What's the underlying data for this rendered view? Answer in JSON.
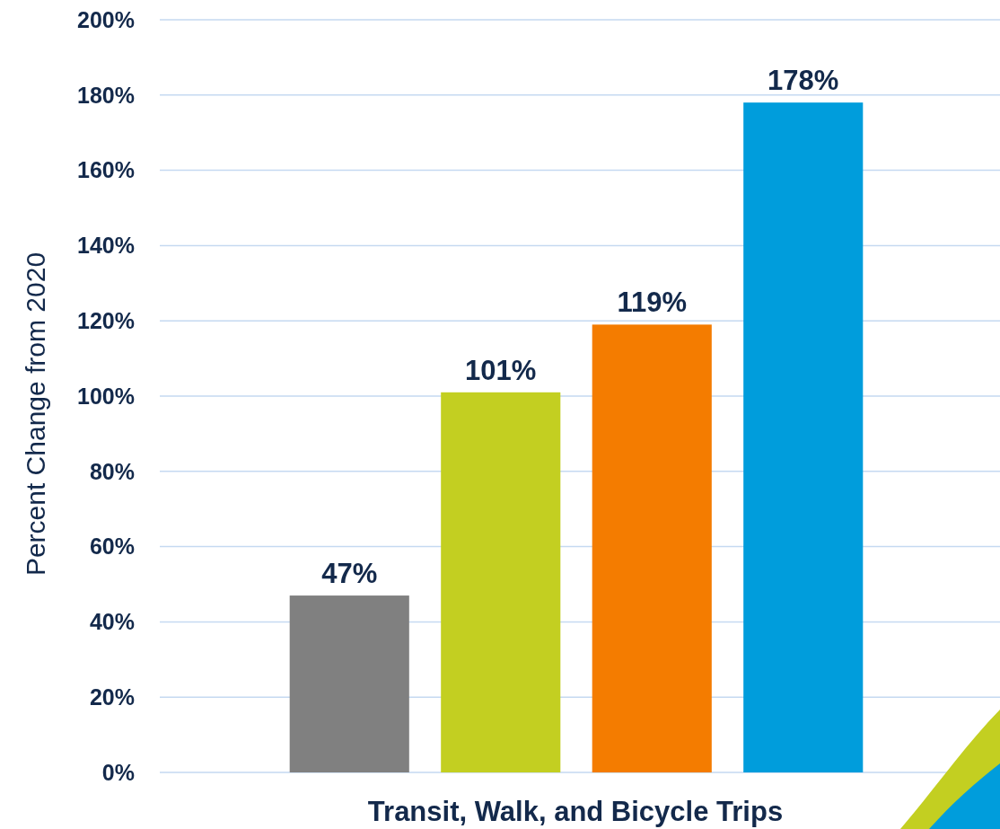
{
  "chart_data": {
    "type": "bar",
    "xlabel": "Transit, Walk, and Bicycle Trips",
    "ylabel": "Percent Change from 2020",
    "categories": [
      null,
      null,
      null,
      null
    ],
    "values": [
      47,
      101,
      119,
      178
    ],
    "colors": [
      "#808080",
      "#c3cf21",
      "#f47c00",
      "#009ddc"
    ],
    "value_labels": [
      "47%",
      "101%",
      "119%",
      "178%"
    ],
    "ylim": [
      0,
      200
    ],
    "yticks": [
      {
        "value": 0,
        "label": "0%"
      },
      {
        "value": 20,
        "label": "20%"
      },
      {
        "value": 40,
        "label": "40%"
      },
      {
        "value": 60,
        "label": "60%"
      },
      {
        "value": 80,
        "label": "80%"
      },
      {
        "value": 100,
        "label": "100%"
      },
      {
        "value": 120,
        "label": "120%"
      },
      {
        "value": 140,
        "label": "140%"
      },
      {
        "value": 160,
        "label": "160%"
      },
      {
        "value": 180,
        "label": "180%"
      },
      {
        "value": 200,
        "label": "200%"
      }
    ],
    "grid": "y"
  }
}
